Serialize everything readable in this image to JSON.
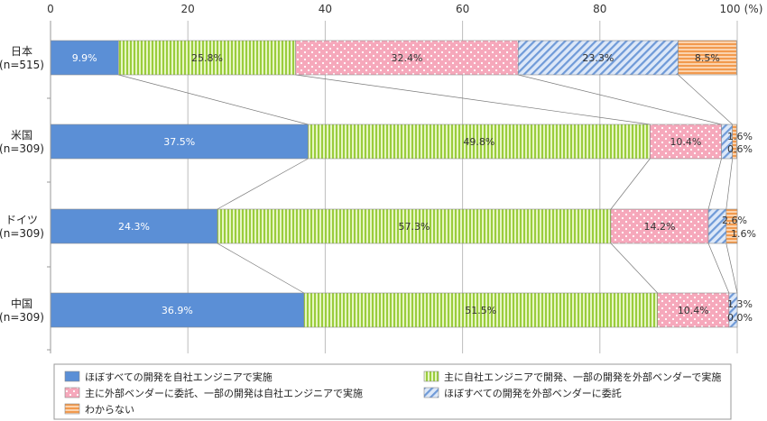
{
  "chart_data": {
    "type": "bar",
    "orientation": "horizontal",
    "stacked": true,
    "unit_label": "(%)",
    "xlim": [
      0,
      100
    ],
    "xticks": [
      "0",
      "20",
      "40",
      "60",
      "80",
      "100"
    ],
    "categories": [
      {
        "name": "日本",
        "n": "(n=515)"
      },
      {
        "name": "米国",
        "n": "(n=309)"
      },
      {
        "name": "ドイツ",
        "n": "(n=309)"
      },
      {
        "name": "中国",
        "n": "(n=309)"
      }
    ],
    "series": [
      {
        "name": "ほぼすべての開発を自社エンジニアで実施",
        "color": "#5b8fd6",
        "pattern": "solid",
        "values": [
          9.9,
          37.5,
          24.3,
          36.9
        ],
        "labels": [
          "9.9%",
          "37.5%",
          "24.3%",
          "36.9%"
        ]
      },
      {
        "name": "主に自社エンジニアで開発、一部の開発を外部ベンダーで実施",
        "color": "#9acd3c",
        "pattern": "vstripes",
        "values": [
          25.8,
          49.8,
          57.3,
          51.5
        ],
        "labels": [
          "25.8%",
          "49.8%",
          "57.3%",
          "51.5%"
        ]
      },
      {
        "name": "主に外部ベンダーに委託、一部の開発は自社エンジニアで実施",
        "color": "#f4a0b4",
        "pattern": "dots",
        "values": [
          32.4,
          10.4,
          14.2,
          10.4
        ],
        "labels": [
          "32.4%",
          "10.4%",
          "14.2%",
          "10.4%"
        ]
      },
      {
        "name": "ほぼすべての開発を外部ベンダーに委託",
        "color": "#5b8fd6",
        "pattern": "diag",
        "values": [
          23.3,
          1.6,
          2.6,
          1.3
        ],
        "labels": [
          "23.3%",
          "1.6%",
          "2.6%",
          "1.3%"
        ]
      },
      {
        "name": "わからない",
        "color": "#f2a05c",
        "pattern": "hstripes",
        "values": [
          8.5,
          0.6,
          1.6,
          0.0
        ],
        "labels": [
          "8.5%",
          "0.6%",
          "1.6%",
          "0.0%"
        ]
      }
    ],
    "legend_position": "bottom"
  }
}
